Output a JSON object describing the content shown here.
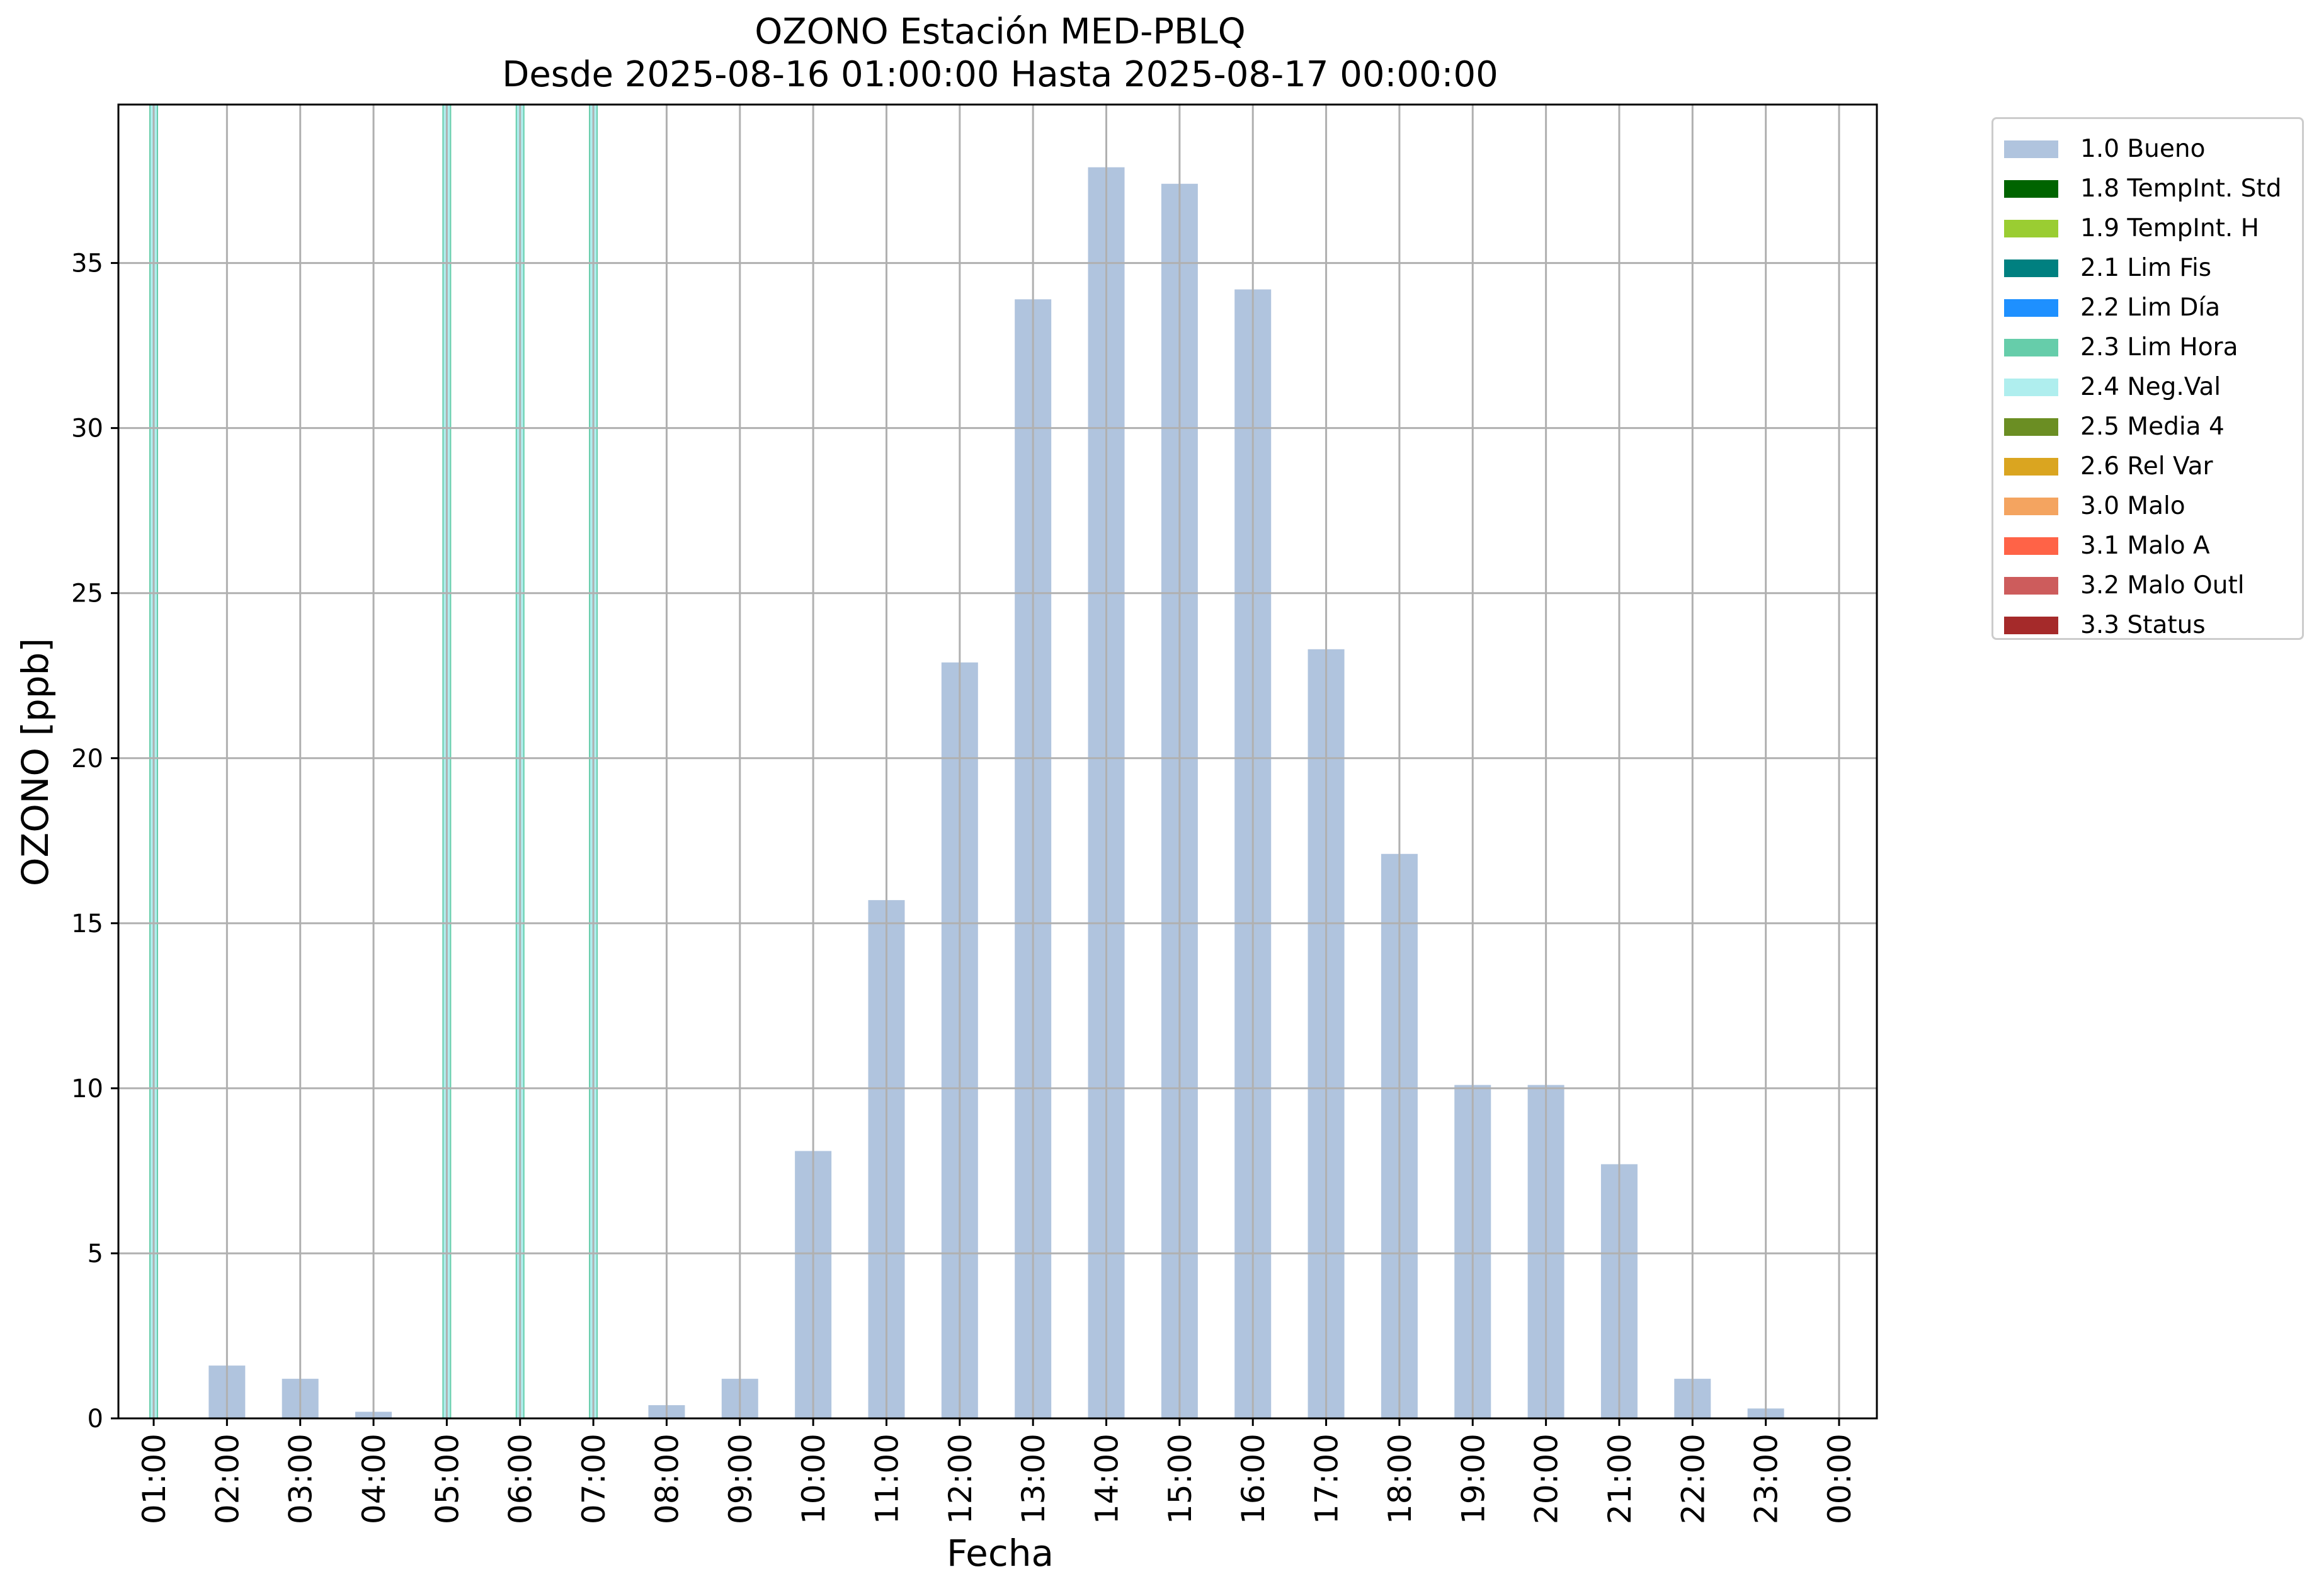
{
  "chart_data": {
    "type": "bar",
    "title": "OZONO Estación MED-PBLQ",
    "subtitle": "Desde 2025-08-16 01:00:00 Hasta 2025-08-17 00:00:00",
    "xlabel": "Fecha",
    "ylabel": "OZONO [ppb]",
    "ylim": [
      0,
      39.8
    ],
    "yticks": [
      "0",
      "5",
      "10",
      "15",
      "20",
      "25",
      "30",
      "35"
    ],
    "categories": [
      "01:00",
      "02:00",
      "03:00",
      "04:00",
      "05:00",
      "06:00",
      "07:00",
      "08:00",
      "09:00",
      "10:00",
      "11:00",
      "12:00",
      "13:00",
      "14:00",
      "15:00",
      "16:00",
      "17:00",
      "18:00",
      "19:00",
      "20:00",
      "21:00",
      "22:00",
      "23:00",
      "00:00"
    ],
    "series": [
      {
        "name": "1.0 Bueno",
        "color": "#b0c4de",
        "values": [
          null,
          1.6,
          1.2,
          0.2,
          null,
          null,
          null,
          0.4,
          1.2,
          8.1,
          15.7,
          22.9,
          33.9,
          37.9,
          37.4,
          34.2,
          23.3,
          17.1,
          10.1,
          10.1,
          7.7,
          1.2,
          0.3,
          null
        ]
      },
      {
        "name": "2.4 Neg.Val",
        "color": "#afeeee",
        "marker": "full-height",
        "edge_color": "#66cdaa",
        "categories": [
          "01:00",
          "05:00",
          "06:00",
          "07:00"
        ]
      }
    ],
    "grid": true,
    "legend_position": "outside-top-right",
    "legend": [
      {
        "label": "1.0 Bueno",
        "color": "#b0c4de"
      },
      {
        "label": "1.8 TempInt. Std",
        "color": "#006400"
      },
      {
        "label": "1.9 TempInt. H",
        "color": "#9acd32"
      },
      {
        "label": "2.1 Lim Fis",
        "color": "#008080"
      },
      {
        "label": "2.2 Lim Día",
        "color": "#1e90ff"
      },
      {
        "label": "2.3 Lim Hora",
        "color": "#66cdaa"
      },
      {
        "label": "2.4 Neg.Val",
        "color": "#afeeee"
      },
      {
        "label": "2.5 Media 4",
        "color": "#6b8e23"
      },
      {
        "label": "2.6 Rel Var",
        "color": "#daa520"
      },
      {
        "label": "3.0 Malo",
        "color": "#f4a460"
      },
      {
        "label": "3.1 Malo A",
        "color": "#ff6347"
      },
      {
        "label": "3.2 Malo Outl",
        "color": "#cd5c5c"
      },
      {
        "label": "3.3 Status",
        "color": "#a52a2a"
      }
    ]
  }
}
